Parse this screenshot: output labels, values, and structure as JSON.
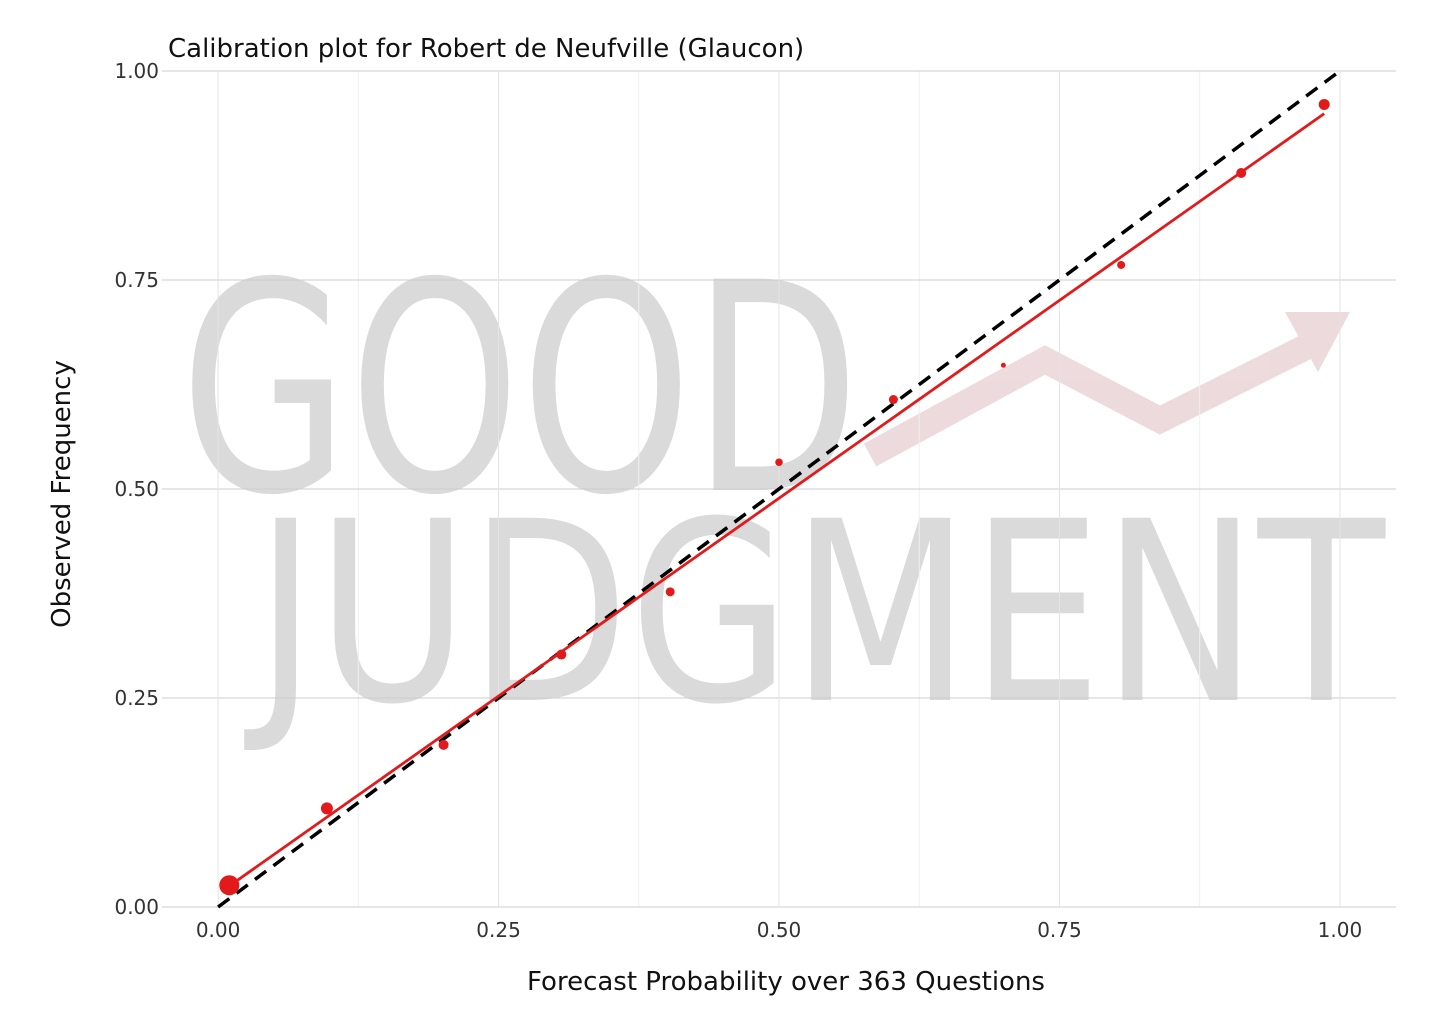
{
  "chart_data": {
    "type": "scatter",
    "title": "Calibration plot for Robert de Neufville (Glaucon)",
    "xlabel": "Forecast Probability over 363 Questions",
    "ylabel": "Observed Frequency",
    "xlim": [
      -0.05,
      1.05
    ],
    "ylim": [
      0,
      1
    ],
    "x_ticks": [
      0.0,
      0.25,
      0.5,
      0.75,
      1.0
    ],
    "y_ticks": [
      0.0,
      0.25,
      0.5,
      0.75,
      1.0
    ],
    "x_tick_labels": [
      "0.00",
      "0.25",
      "0.50",
      "0.75",
      "1.00"
    ],
    "y_tick_labels": [
      "0.00",
      "0.25",
      "0.50",
      "0.75",
      "1.00"
    ],
    "grid": true,
    "points": [
      {
        "x": 0.01,
        "y": 0.026,
        "size": 10
      },
      {
        "x": 0.097,
        "y": 0.118,
        "size": 6
      },
      {
        "x": 0.201,
        "y": 0.194,
        "size": 5
      },
      {
        "x": 0.306,
        "y": 0.302,
        "size": 5
      },
      {
        "x": 0.403,
        "y": 0.377,
        "size": 4.5
      },
      {
        "x": 0.5,
        "y": 0.532,
        "size": 3.8
      },
      {
        "x": 0.602,
        "y": 0.607,
        "size": 4.5
      },
      {
        "x": 0.7,
        "y": 0.648,
        "size": 2.5
      },
      {
        "x": 0.805,
        "y": 0.768,
        "size": 4
      },
      {
        "x": 0.912,
        "y": 0.878,
        "size": 5
      },
      {
        "x": 0.986,
        "y": 0.96,
        "size": 5.5
      }
    ],
    "fit_line": {
      "x": [
        0.012,
        0.986
      ],
      "y": [
        0.027,
        0.949
      ]
    },
    "reference_line": {
      "x": [
        0.0,
        1.0
      ],
      "y": [
        0.0,
        1.0
      ]
    },
    "colors": {
      "points": "#e31a1c",
      "fit": "#e31a1c",
      "reference": "#000000",
      "grid": "#cccccc"
    }
  },
  "watermark": {
    "line1": "GOOD",
    "line2": "JUDGMENT"
  }
}
